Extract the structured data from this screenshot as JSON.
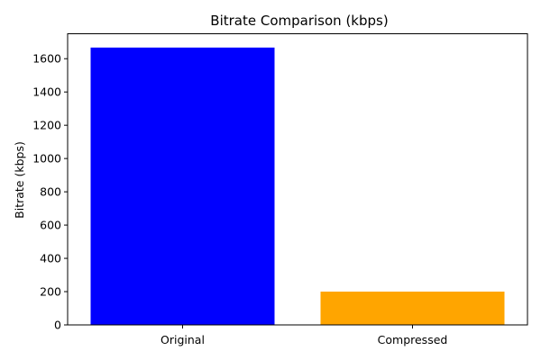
{
  "chart_data": {
    "type": "bar",
    "title": "Bitrate Comparison (kbps)",
    "xlabel": "",
    "ylabel": "Bitrate (kbps)",
    "categories": [
      "Original",
      "Compressed"
    ],
    "values": [
      1667,
      200
    ],
    "colors": [
      "#0000ff",
      "#ffa500"
    ],
    "ylim": [
      0,
      1750
    ],
    "yticks": [
      0,
      200,
      400,
      600,
      800,
      1000,
      1200,
      1400,
      1600
    ],
    "grid": false,
    "legend": "none"
  }
}
